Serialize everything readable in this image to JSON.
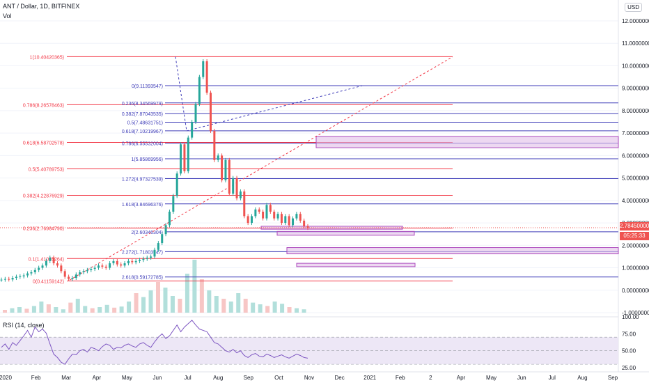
{
  "header": {
    "symbol_line": "ANT / Dollar, 1D, BITFINEX",
    "vol_label": "Vol",
    "rsi_label": "RSI (14, close)",
    "currency_button": "USD"
  },
  "price_tags": {
    "last_price": "2.78450000",
    "countdown": "05:25:33",
    "last_color": "#ef5350",
    "countdown_color": "#ef5350"
  },
  "colors": {
    "fib_main": "#f23645",
    "fib_secondary": "#3d3bb8",
    "zone_fill": "#e1bee7",
    "zone_stroke": "#ab47bc",
    "rsi_band": "#ede7f6",
    "rsi_line": "#7e57c2",
    "up": "#26a69a",
    "down": "#ef5350"
  },
  "chart_data": {
    "type": "candlestick",
    "y_axis_ticks": [
      "12.00000000",
      "11.00000000",
      "10.00000000",
      "9.00000000",
      "8.00000000",
      "7.00000000",
      "6.00000000",
      "5.00000000",
      "4.00000000",
      "3.00000000",
      "2.00000000",
      "1.00000000",
      "0.00000000",
      "-1.00000000"
    ],
    "ylim": [
      -1,
      12.5
    ],
    "x_axis_ticks": [
      "2020",
      "Feb",
      "Mar",
      "Apr",
      "May",
      "Jun",
      "Jul",
      "Aug",
      "Sep",
      "Oct",
      "Nov",
      "Dec",
      "2021",
      "Feb",
      "2",
      "Apr",
      "May",
      "Jun",
      "Jul",
      "Aug",
      "Sep"
    ],
    "rsi_ticks": [
      "100.00",
      "75.00",
      "50.00",
      "25.00"
    ],
    "rsi_ylim": [
      20,
      100
    ],
    "rsi_band": [
      30,
      70
    ],
    "fib_main": [
      {
        "label": "1(10.40420365)",
        "value": 10.40420365
      },
      {
        "label": "0.786(8.26578463)",
        "value": 8.26578463
      },
      {
        "label": "0.618(6.58702578)",
        "value": 6.58702578
      },
      {
        "label": "0.5(5.40789753)",
        "value": 5.40789753
      },
      {
        "label": "0.382(4.22876929)",
        "value": 4.22876929
      },
      {
        "label": "0.236(2.76984790)",
        "value": 2.7698479
      },
      {
        "label": "0.1(1.41085264)",
        "value": 1.41085264
      },
      {
        "label": "0(0.41159142)",
        "value": 0.41159142
      }
    ],
    "fib_secondary": [
      {
        "label": "0(9.11393547)",
        "value": 9.11393547
      },
      {
        "label": "0.236(8.34569979)",
        "value": 8.34569979
      },
      {
        "label": "0.382(7.87043535)",
        "value": 7.87043535
      },
      {
        "label": "0.5(7.48631751)",
        "value": 7.48631751
      },
      {
        "label": "0.618(7.10219967)",
        "value": 7.10219967
      },
      {
        "label": "0.786(6.55532004)",
        "value": 6.55532004
      },
      {
        "label": "1(5.85869956)",
        "value": 5.85869956
      },
      {
        "label": "1.272(4.97327539)",
        "value": 4.97327539
      },
      {
        "label": "1.618(3.84696376)",
        "value": 3.84696376
      },
      {
        "label": "2(2.60346304)",
        "value": 2.60346304
      },
      {
        "label": "2.272(1.71803947)",
        "value": 1.71803947
      },
      {
        "label": "2.618(0.59172785)",
        "value": 0.59172785
      }
    ],
    "close_series": [
      0.47,
      0.5,
      0.48,
      0.55,
      0.6,
      0.62,
      0.66,
      0.75,
      0.8,
      0.9,
      1.0,
      1.1,
      1.3,
      1.45,
      1.2,
      1.1,
      0.85,
      0.6,
      0.5,
      0.55,
      0.7,
      0.8,
      0.85,
      0.9,
      0.95,
      1.0,
      1.1,
      1.05,
      1.0,
      1.2,
      1.3,
      1.15,
      1.1,
      1.2,
      1.3,
      1.25,
      1.3,
      1.35,
      1.4,
      1.45,
      1.5,
      1.8,
      2.1,
      2.5,
      2.9,
      3.5,
      4.2,
      5.2,
      6.5,
      5.3,
      6.8,
      7.5,
      8.3,
      9.5,
      10.2,
      8.8,
      7.1,
      5.8,
      6.0,
      4.9,
      5.8,
      4.3,
      5.0,
      4.1,
      4.4,
      3.3,
      3.0,
      3.3,
      3.6,
      3.5,
      3.2,
      3.8,
      3.5,
      3.2,
      3.4,
      3.0,
      3.3,
      2.9,
      3.2,
      3.4,
      3.1,
      2.85,
      2.78
    ],
    "rsi_series": [
      55,
      60,
      52,
      62,
      58,
      65,
      72,
      80,
      70,
      85,
      78,
      82,
      76,
      60,
      45,
      40,
      33,
      30,
      38,
      45,
      44,
      50,
      52,
      48,
      55,
      53,
      50,
      56,
      60,
      58,
      52,
      55,
      54,
      58,
      60,
      57,
      55,
      60,
      62,
      58,
      55,
      63,
      70,
      75,
      68,
      72,
      80,
      88,
      78,
      85,
      90,
      95,
      88,
      82,
      80,
      78,
      70,
      62,
      60,
      55,
      50,
      48,
      52,
      47,
      50,
      43,
      40,
      44,
      46,
      42,
      41,
      45,
      43,
      40,
      42,
      44,
      41,
      39,
      42,
      45,
      43,
      40,
      39
    ],
    "volume_series": [
      0.05,
      0.08,
      0.1,
      0.07,
      0.12,
      0.2,
      0.15,
      0.1,
      0.06,
      0.18,
      0.25,
      0.12,
      0.08,
      0.1,
      0.14,
      0.09,
      0.11,
      0.2,
      0.35,
      0.28,
      0.4,
      0.55,
      0.45,
      0.3,
      0.25,
      0.7,
      0.95,
      0.6,
      0.4,
      0.3,
      0.25,
      0.2,
      0.35,
      0.25,
      0.18,
      0.15,
      0.12,
      0.2,
      0.16,
      0.1,
      0.08,
      0.06
    ]
  }
}
